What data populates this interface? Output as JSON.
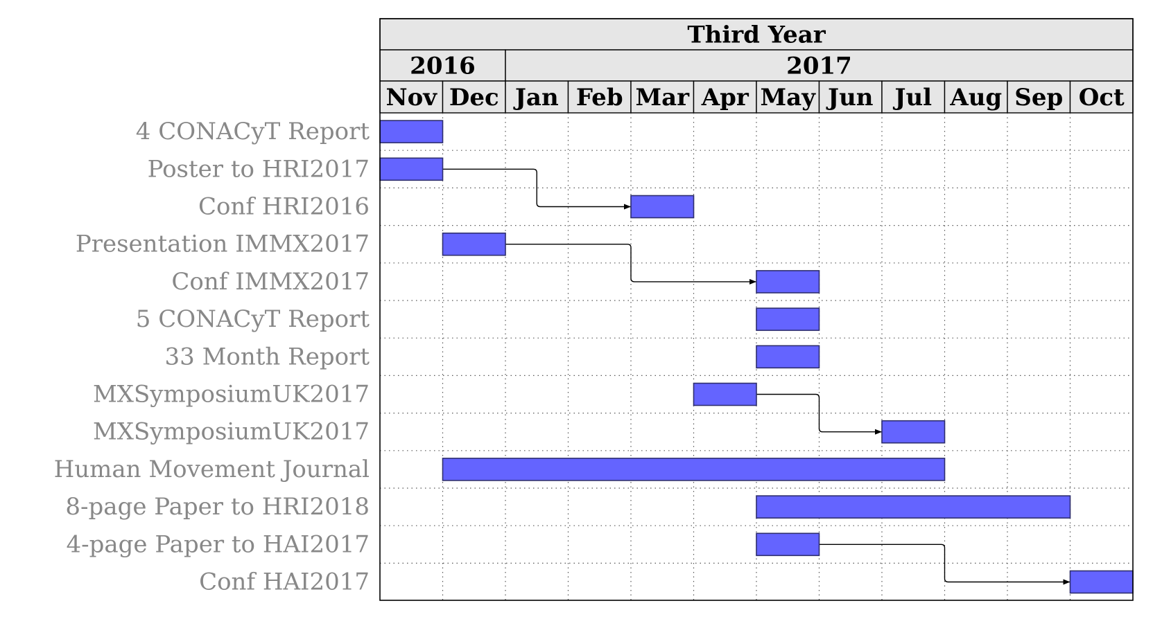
{
  "chart_data": {
    "type": "gantt",
    "title": "Third Year",
    "years": [
      {
        "label": "2016",
        "months": 2
      },
      {
        "label": "2017",
        "months": 10
      }
    ],
    "months": [
      "Nov",
      "Dec",
      "Jan",
      "Feb",
      "Mar",
      "Apr",
      "May",
      "Jun",
      "Jul",
      "Aug",
      "Sep",
      "Oct"
    ],
    "tasks": [
      {
        "label": "4 CONACyT Report",
        "start": "Nov",
        "end": "Nov"
      },
      {
        "label": "Poster to HRI2017",
        "start": "Nov",
        "end": "Nov"
      },
      {
        "label": "Conf HRI2016",
        "start": "Mar",
        "end": "Mar"
      },
      {
        "label": "Presentation IMMX2017",
        "start": "Dec",
        "end": "Dec"
      },
      {
        "label": "Conf IMMX2017",
        "start": "May",
        "end": "May"
      },
      {
        "label": "5 CONACyT Report",
        "start": "May",
        "end": "May"
      },
      {
        "label": "33 Month Report",
        "start": "May",
        "end": "May"
      },
      {
        "label": "MXSymposiumUK2017",
        "start": "Apr",
        "end": "Apr"
      },
      {
        "label": "MXSymposiumUK2017",
        "start": "Jul",
        "end": "Jul"
      },
      {
        "label": "Human Movement Journal",
        "start": "Dec",
        "end": "Jul"
      },
      {
        "label": "8-page Paper to HRI2018",
        "start": "May",
        "end": "Sep"
      },
      {
        "label": "4-page Paper to HAI2017",
        "start": "May",
        "end": "May"
      },
      {
        "label": "Conf HAI2017",
        "start": "Oct",
        "end": "Oct"
      }
    ],
    "links": [
      {
        "from": 1,
        "to": 2
      },
      {
        "from": 3,
        "to": 4
      },
      {
        "from": 7,
        "to": 8
      },
      {
        "from": 11,
        "to": 12
      }
    ],
    "colors": {
      "bar_fill": "#6464ff",
      "bar_stroke": "#2e2e6e",
      "header_fill": "#e6e6e6",
      "task_label": "#888888",
      "grid": "#555555"
    },
    "grid": "dotted"
  }
}
